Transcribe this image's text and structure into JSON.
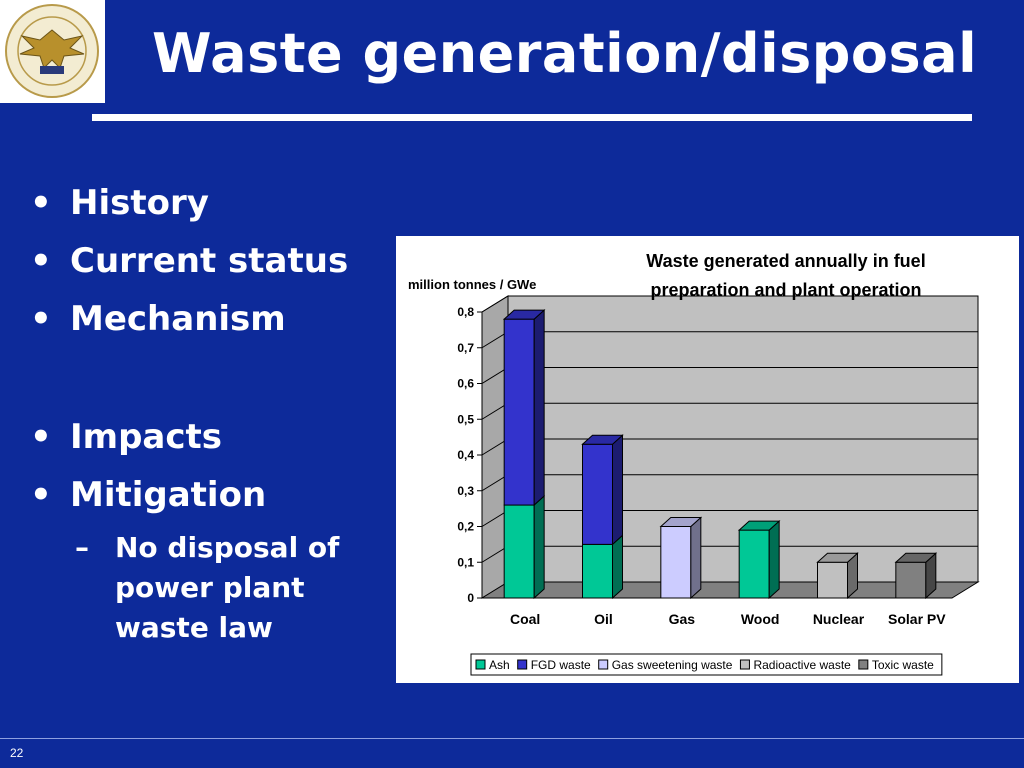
{
  "slide": {
    "title": "Waste generation/disposal",
    "page_number": "22",
    "bullets": [
      {
        "label": "History"
      },
      {
        "label": "Current status"
      },
      {
        "label": "Mechanism"
      },
      {
        "label": "Impacts"
      },
      {
        "label": "Mitigation"
      }
    ],
    "sub_bullet": "No disposal of power plant waste law",
    "bullet_glyph": "•",
    "dash_glyph": "–"
  },
  "colors": {
    "background": "#0d2a9a",
    "text": "#ffffff",
    "ash": "#00c896",
    "fgd": "#3333cc",
    "gas_sweetening": "#ccccff",
    "radioactive": "#c0c0c0",
    "toxic": "#808080",
    "plot_wall": "#c0c0c0"
  },
  "logo": {
    "icon": "university-seal-eagle-icon"
  },
  "chart_data": {
    "type": "bar",
    "stacked": true,
    "three_d": true,
    "title": "Waste generated annually in fuel preparation and plant operation",
    "title_lines": [
      "Waste generated annually in fuel",
      "preparation and plant operation"
    ],
    "ylabel": "million tonnes / GWe",
    "xlabel": "",
    "categories": [
      "Coal",
      "Oil",
      "Gas",
      "Wood",
      "Nuclear",
      "Solar PV"
    ],
    "ylim": [
      0,
      0.8
    ],
    "yticks": [
      "0",
      "0,1",
      "0,2",
      "0,3",
      "0,4",
      "0,5",
      "0,6",
      "0,7",
      "0,8"
    ],
    "grid": true,
    "legend_position": "bottom",
    "series": [
      {
        "name": "Ash",
        "color": "#00c896",
        "values": [
          0.26,
          0.15,
          0,
          0.19,
          0,
          0
        ]
      },
      {
        "name": "FGD waste",
        "color": "#3333cc",
        "values": [
          0.52,
          0.28,
          0,
          0,
          0,
          0
        ]
      },
      {
        "name": "Gas sweetening waste",
        "color": "#ccccff",
        "values": [
          0,
          0,
          0.2,
          0,
          0,
          0
        ]
      },
      {
        "name": "Radioactive waste",
        "color": "#c0c0c0",
        "values": [
          0,
          0,
          0,
          0,
          0.1,
          0
        ]
      },
      {
        "name": "Toxic waste",
        "color": "#808080",
        "values": [
          0,
          0,
          0,
          0,
          0,
          0.1
        ]
      }
    ]
  }
}
